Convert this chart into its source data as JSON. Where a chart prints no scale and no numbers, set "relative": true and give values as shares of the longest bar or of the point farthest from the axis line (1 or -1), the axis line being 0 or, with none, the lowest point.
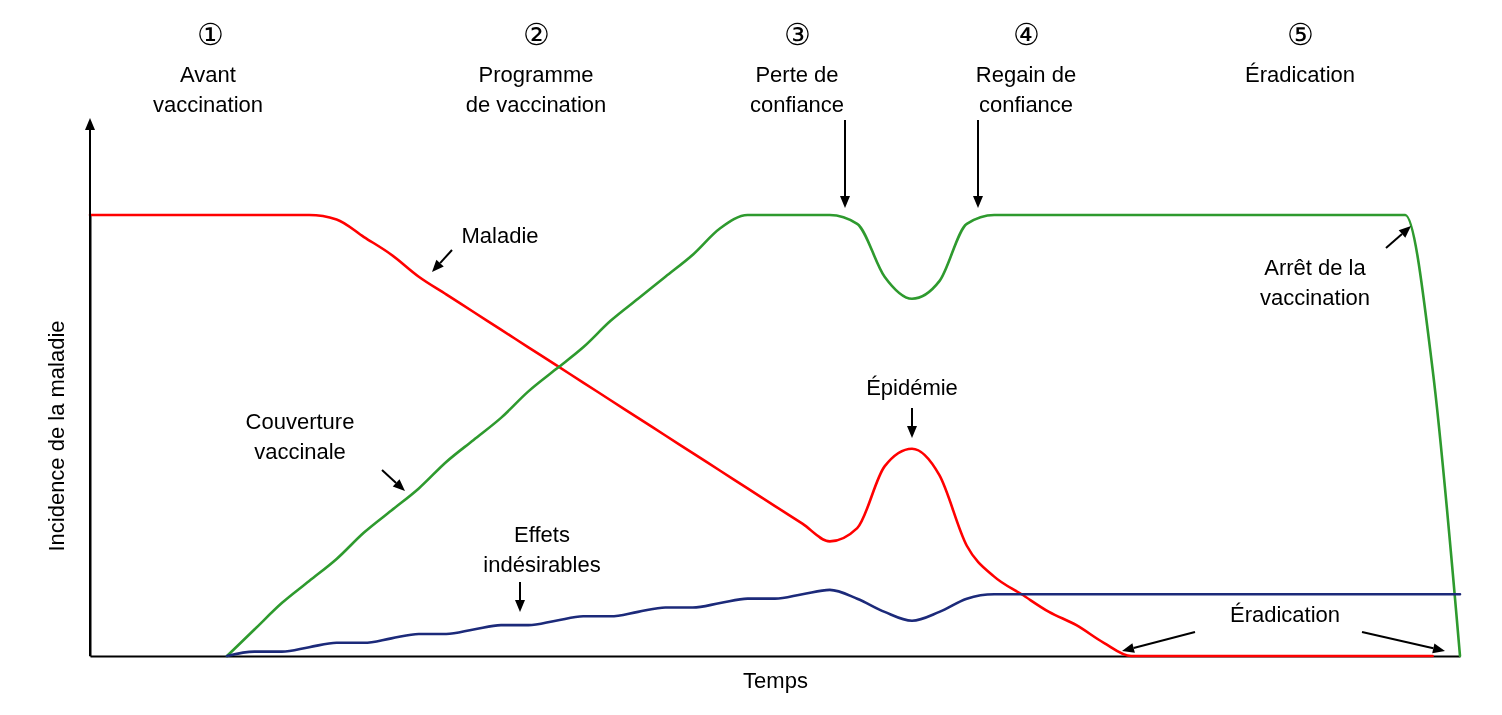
{
  "chart_data": {
    "type": "line",
    "relative": true,
    "xlabel": "Temps",
    "ylabel": "Incidence de la maladie",
    "categories": [
      null,
      null,
      null,
      null,
      null,
      null,
      null,
      null,
      null,
      null,
      null,
      null,
      null,
      null,
      null,
      null,
      null,
      null,
      null,
      null,
      null,
      null,
      null,
      null,
      null,
      null,
      null,
      null,
      null,
      null,
      null,
      null,
      null,
      null,
      null,
      null,
      null,
      null,
      null,
      null,
      null,
      null,
      null,
      null,
      null,
      null,
      null,
      null,
      null,
      null,
      null
    ],
    "series": [
      {
        "name": "Maladie",
        "color": "#ff0000",
        "values": [
          1,
          1,
          1,
          1,
          1,
          1,
          1,
          1,
          1,
          0.99,
          0.95,
          0.91,
          0.86,
          0.82,
          0.78,
          0.74,
          0.7,
          0.66,
          0.62,
          0.58,
          0.54,
          0.5,
          0.46,
          0.42,
          0.38,
          0.34,
          0.3,
          0.26,
          0.29,
          0.43,
          0.47,
          0.41,
          0.25,
          0.18,
          0.14,
          0.1,
          0.07,
          0.03,
          0,
          0,
          0,
          0,
          0,
          0,
          0,
          0,
          0,
          0,
          0,
          0,
          null
        ]
      },
      {
        "name": "Couverture\nvaccinale",
        "color": "#2e9a2e",
        "values": [
          null,
          null,
          null,
          null,
          null,
          0,
          0.06,
          0.12,
          0.17,
          0.22,
          0.28,
          0.33,
          0.38,
          0.44,
          0.49,
          0.54,
          0.6,
          0.65,
          0.7,
          0.76,
          0.81,
          0.86,
          0.91,
          0.97,
          1,
          1,
          1,
          1,
          0.98,
          0.86,
          0.81,
          0.85,
          0.98,
          1,
          1,
          1,
          1,
          1,
          1,
          1,
          1,
          1,
          1,
          1,
          1,
          1,
          1,
          1,
          1,
          0.65,
          0
        ]
      },
      {
        "name": "Effets\nindésirables",
        "color": "#1c2a7a",
        "values": [
          null,
          null,
          null,
          null,
          null,
          0,
          0.01,
          0.01,
          0.02,
          0.03,
          0.03,
          0.04,
          0.05,
          0.05,
          0.06,
          0.07,
          0.07,
          0.08,
          0.09,
          0.09,
          0.1,
          0.11,
          0.11,
          0.12,
          0.13,
          0.13,
          0.14,
          0.15,
          0.13,
          0.1,
          0.08,
          0.1,
          0.13,
          0.14,
          0.14,
          0.14,
          0.14,
          0.14,
          0.14,
          0.14,
          0.14,
          0.14,
          0.14,
          0.14,
          0.14,
          0.14,
          0.14,
          0.14,
          0.14,
          0.14,
          0.14
        ]
      }
    ],
    "annotations": [
      "①",
      "Avant\nvaccination",
      "②",
      "Programme\nde vaccination",
      "③",
      "Perte de\nconfiance",
      "④",
      "Regain de\nconfiance",
      "⑤",
      "Éradication",
      "Épidémie",
      "Arrêt de la\nvaccination",
      "Éradication"
    ],
    "line_style": "solid"
  }
}
